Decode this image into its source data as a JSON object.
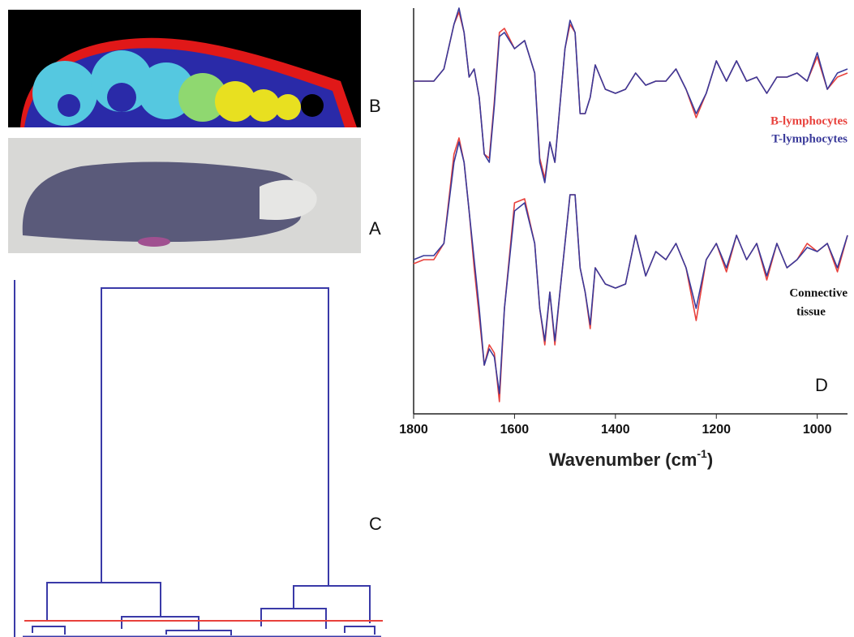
{
  "panel_labels": [
    "B",
    "A",
    "C"
  ],
  "chart_data": {
    "type": "line",
    "panel_label": "D",
    "xlabel": [
      "Wavenumber (cm",
      "-1",
      ")"
    ],
    "annotation": [
      "Connective",
      "tissue"
    ],
    "xlim": [
      1800,
      940
    ],
    "xticks": [
      1800,
      1600,
      1400,
      1200,
      1000
    ],
    "ylim": [
      0,
      100
    ],
    "x": [
      1800,
      1780,
      1760,
      1740,
      1720,
      1710,
      1700,
      1690,
      1680,
      1670,
      1660,
      1650,
      1640,
      1630,
      1620,
      1600,
      1580,
      1560,
      1550,
      1540,
      1530,
      1520,
      1510,
      1500,
      1490,
      1480,
      1470,
      1460,
      1450,
      1440,
      1420,
      1400,
      1380,
      1360,
      1340,
      1320,
      1300,
      1280,
      1260,
      1240,
      1220,
      1200,
      1180,
      1160,
      1140,
      1120,
      1100,
      1080,
      1060,
      1040,
      1020,
      1000,
      980,
      960,
      940
    ],
    "series": [
      {
        "name": "B-lymphocytes",
        "color": "#e8413c",
        "values": [
          82,
          82,
          82,
          85,
          96,
          99,
          94,
          83,
          85,
          78,
          64,
          63,
          77,
          94,
          95,
          90,
          92,
          84,
          63,
          58,
          67,
          62,
          76,
          90,
          96,
          94,
          74,
          74,
          78,
          86,
          80,
          79,
          80,
          84,
          81,
          82,
          82,
          85,
          80,
          73,
          79,
          87,
          82,
          87,
          82,
          83,
          79,
          83,
          83,
          84,
          82,
          88,
          80,
          83,
          84
        ]
      },
      {
        "name": "T-lymphocytes",
        "color": "#3a3a9a",
        "values": [
          82,
          82,
          82,
          85,
          96,
          100,
          94,
          83,
          85,
          78,
          64,
          62,
          76,
          93,
          94,
          90,
          92,
          84,
          62,
          57,
          67,
          62,
          76,
          90,
          97,
          94,
          74,
          74,
          78,
          86,
          80,
          79,
          80,
          84,
          81,
          82,
          82,
          85,
          80,
          74,
          79,
          87,
          82,
          87,
          82,
          83,
          79,
          83,
          83,
          84,
          82,
          89,
          80,
          84,
          85
        ]
      },
      {
        "color": "#e8413c",
        "values": [
          37,
          38,
          38,
          42,
          64,
          68,
          62,
          50,
          36,
          24,
          12,
          17,
          15,
          3,
          26,
          52,
          53,
          42,
          26,
          17,
          30,
          17,
          30,
          42,
          54,
          54,
          36,
          30,
          21,
          36,
          32,
          31,
          32,
          44,
          34,
          40,
          38,
          42,
          36,
          23,
          38,
          42,
          35,
          44,
          38,
          42,
          33,
          42,
          36,
          38,
          42,
          40,
          42,
          35,
          44
        ]
      },
      {
        "color": "#3a3a9a",
        "values": [
          38,
          39,
          39,
          42,
          62,
          67,
          62,
          50,
          38,
          26,
          12,
          16,
          14,
          5,
          26,
          50,
          52,
          42,
          26,
          18,
          30,
          18,
          30,
          42,
          54,
          54,
          36,
          30,
          22,
          36,
          32,
          31,
          32,
          44,
          34,
          40,
          38,
          42,
          36,
          26,
          38,
          42,
          36,
          44,
          38,
          42,
          34,
          42,
          36,
          38,
          41,
          40,
          42,
          36,
          44
        ]
      }
    ]
  }
}
